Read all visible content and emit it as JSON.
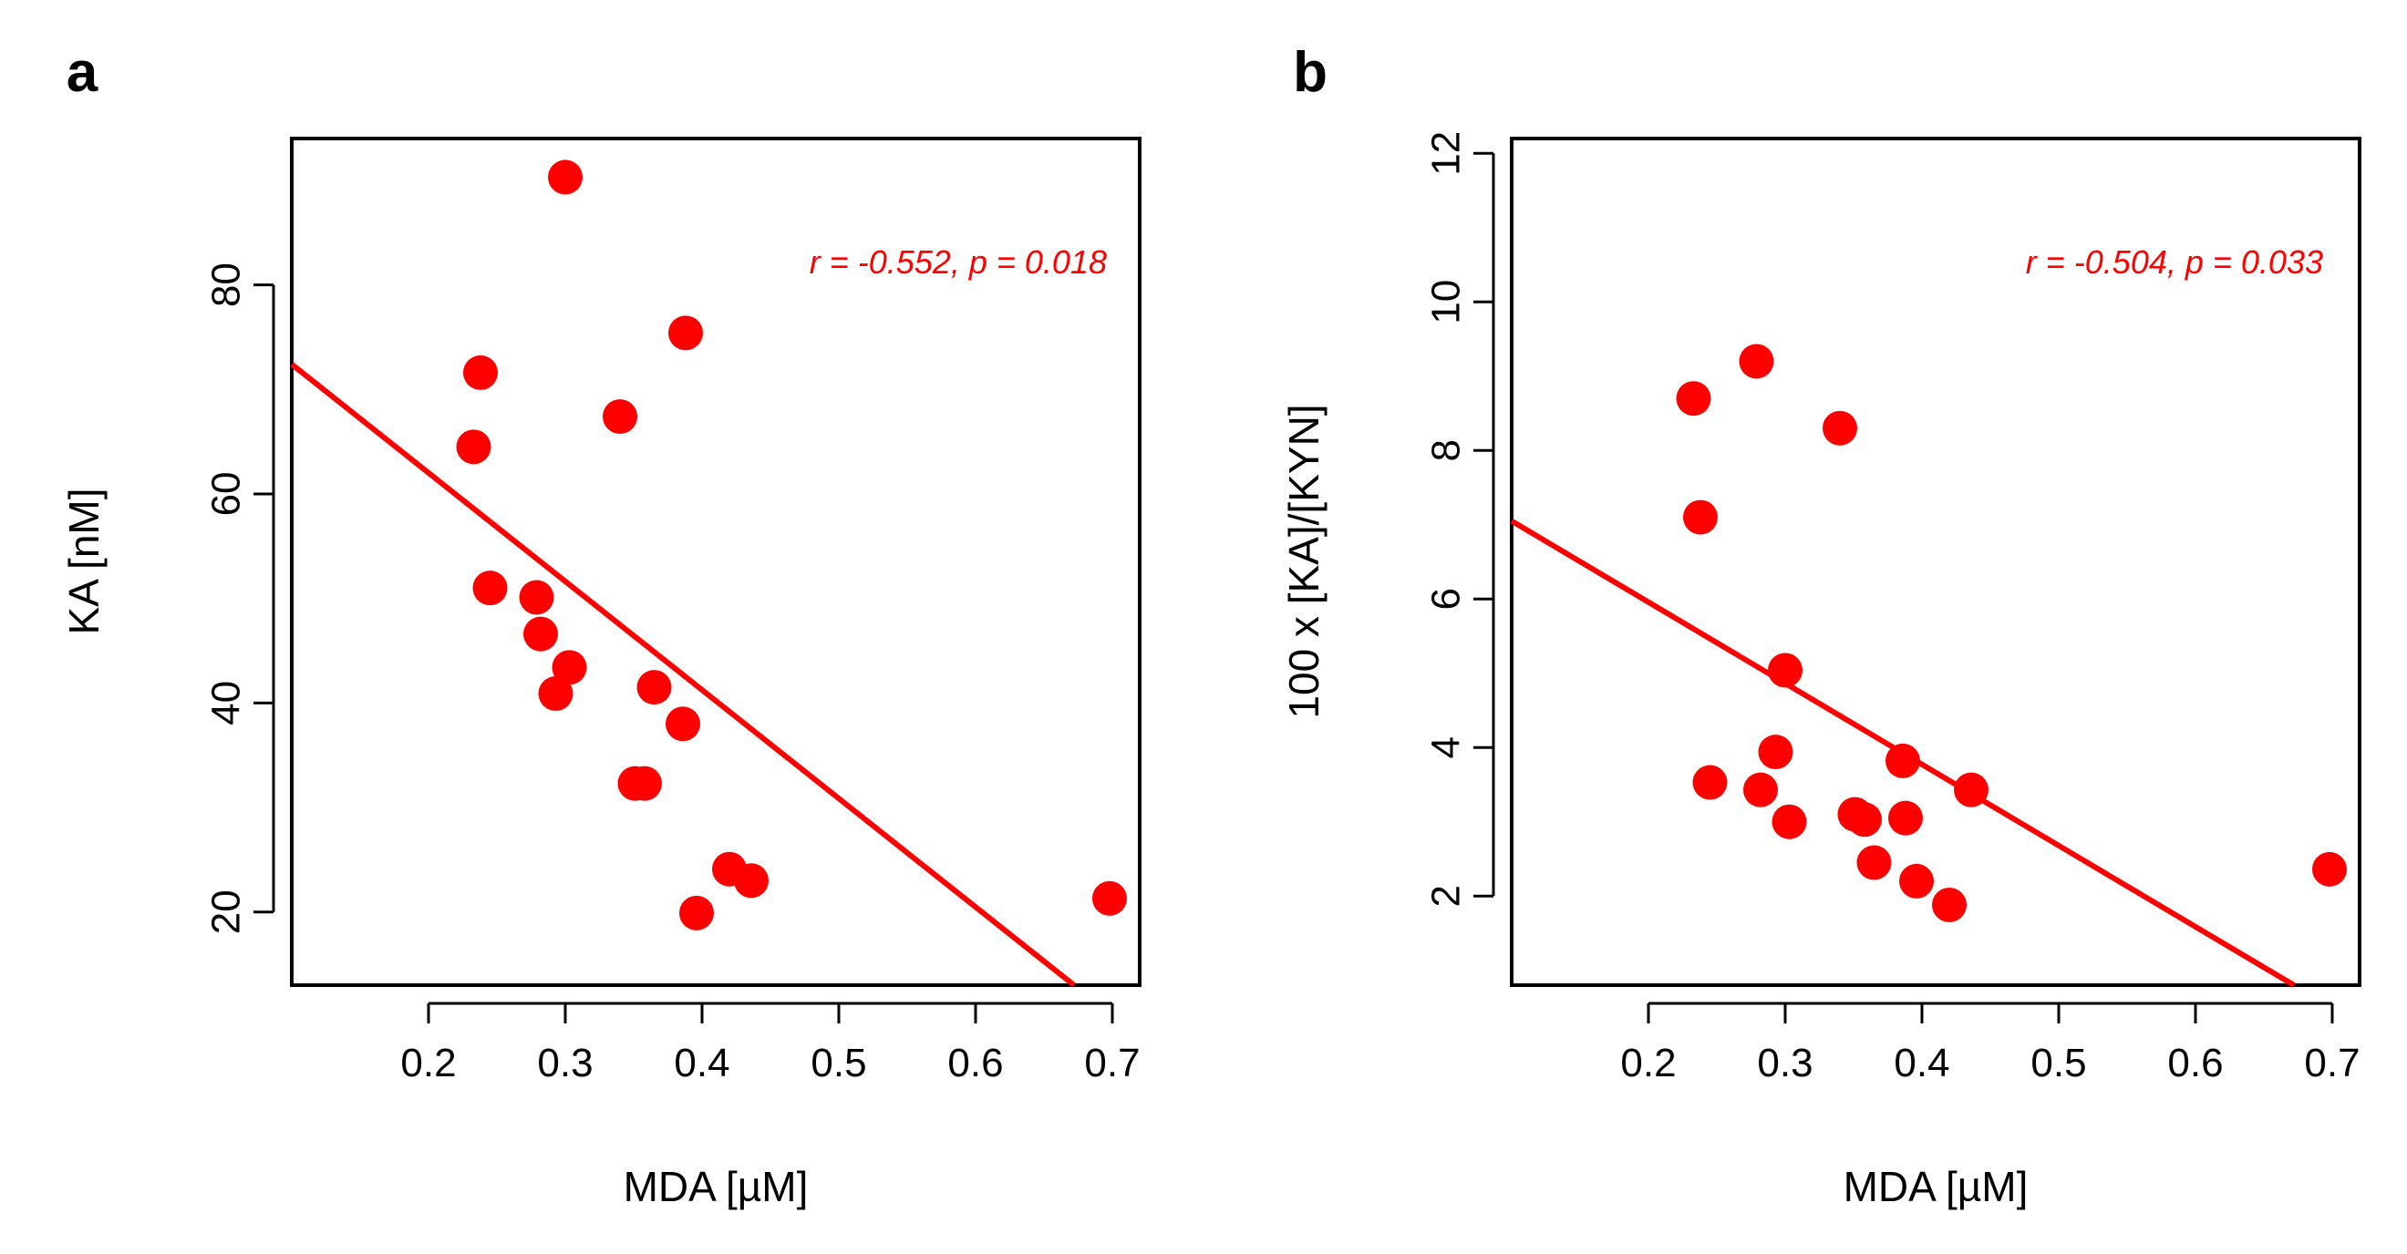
{
  "figure": {
    "panels": [
      "a",
      "b"
    ]
  },
  "colors": {
    "points": "#ff0000",
    "fit_line": "#ff0000",
    "annotation": "#ff0000",
    "axis": "#000000",
    "background": "#ffffff"
  },
  "chart_data": [
    {
      "panel_label": "a",
      "type": "scatter",
      "title": "",
      "xlabel": "MDA [µM]",
      "ylabel": "KA [nM]",
      "xlim": [
        0.1,
        0.72
      ],
      "ylim": [
        13,
        94
      ],
      "xticks": [
        0.2,
        0.3,
        0.4,
        0.5,
        0.6,
        0.7
      ],
      "xtick_labels": [
        "0.2",
        "0.3",
        "0.4",
        "0.5",
        "0.6",
        "0.7"
      ],
      "yticks": [
        20,
        40,
        60,
        80
      ],
      "ytick_labels": [
        "20",
        "40",
        "60",
        "80"
      ],
      "grid": false,
      "points": [
        {
          "x": 0.233,
          "y": 64.5
        },
        {
          "x": 0.238,
          "y": 71.6
        },
        {
          "x": 0.245,
          "y": 51.0
        },
        {
          "x": 0.279,
          "y": 50.1
        },
        {
          "x": 0.282,
          "y": 46.6
        },
        {
          "x": 0.293,
          "y": 40.9
        },
        {
          "x": 0.3,
          "y": 90.3
        },
        {
          "x": 0.303,
          "y": 43.4
        },
        {
          "x": 0.34,
          "y": 67.4
        },
        {
          "x": 0.351,
          "y": 32.3
        },
        {
          "x": 0.358,
          "y": 32.3
        },
        {
          "x": 0.365,
          "y": 41.5
        },
        {
          "x": 0.386,
          "y": 38.0
        },
        {
          "x": 0.388,
          "y": 75.4
        },
        {
          "x": 0.396,
          "y": 19.9
        },
        {
          "x": 0.42,
          "y": 24.1
        },
        {
          "x": 0.436,
          "y": 23.0
        },
        {
          "x": 0.698,
          "y": 21.3
        }
      ],
      "fit_line": {
        "x": [
          0.1,
          0.672
        ],
        "y": [
          72.4,
          13.0
        ]
      },
      "annotation": "r = -0.552, p = 0.018"
    },
    {
      "panel_label": "b",
      "type": "scatter",
      "title": "",
      "xlabel": "MDA [µM]",
      "ylabel": "100 x [KA]/[KYN]",
      "xlim": [
        0.1,
        0.72
      ],
      "ylim": [
        0.8,
        12.2
      ],
      "xticks": [
        0.2,
        0.3,
        0.4,
        0.5,
        0.6,
        0.7
      ],
      "xtick_labels": [
        "0.2",
        "0.3",
        "0.4",
        "0.5",
        "0.6",
        "0.7"
      ],
      "yticks": [
        2,
        4,
        6,
        8,
        10,
        12
      ],
      "ytick_labels": [
        "2",
        "4",
        "6",
        "8",
        "10",
        "12"
      ],
      "grid": false,
      "points": [
        {
          "x": 0.233,
          "y": 8.7
        },
        {
          "x": 0.238,
          "y": 7.1
        },
        {
          "x": 0.245,
          "y": 3.53
        },
        {
          "x": 0.279,
          "y": 9.2
        },
        {
          "x": 0.282,
          "y": 3.43
        },
        {
          "x": 0.293,
          "y": 3.94
        },
        {
          "x": 0.3,
          "y": 5.04
        },
        {
          "x": 0.303,
          "y": 3.0
        },
        {
          "x": 0.34,
          "y": 8.3
        },
        {
          "x": 0.351,
          "y": 3.1
        },
        {
          "x": 0.358,
          "y": 3.03
        },
        {
          "x": 0.365,
          "y": 2.45
        },
        {
          "x": 0.386,
          "y": 3.82
        },
        {
          "x": 0.388,
          "y": 3.05
        },
        {
          "x": 0.396,
          "y": 2.2
        },
        {
          "x": 0.42,
          "y": 1.88
        },
        {
          "x": 0.436,
          "y": 3.43
        },
        {
          "x": 0.698,
          "y": 2.36
        }
      ],
      "fit_line": {
        "x": [
          0.1,
          0.672
        ],
        "y": [
          7.05,
          0.8
        ]
      },
      "annotation": "r = -0.504, p = 0.033"
    }
  ]
}
